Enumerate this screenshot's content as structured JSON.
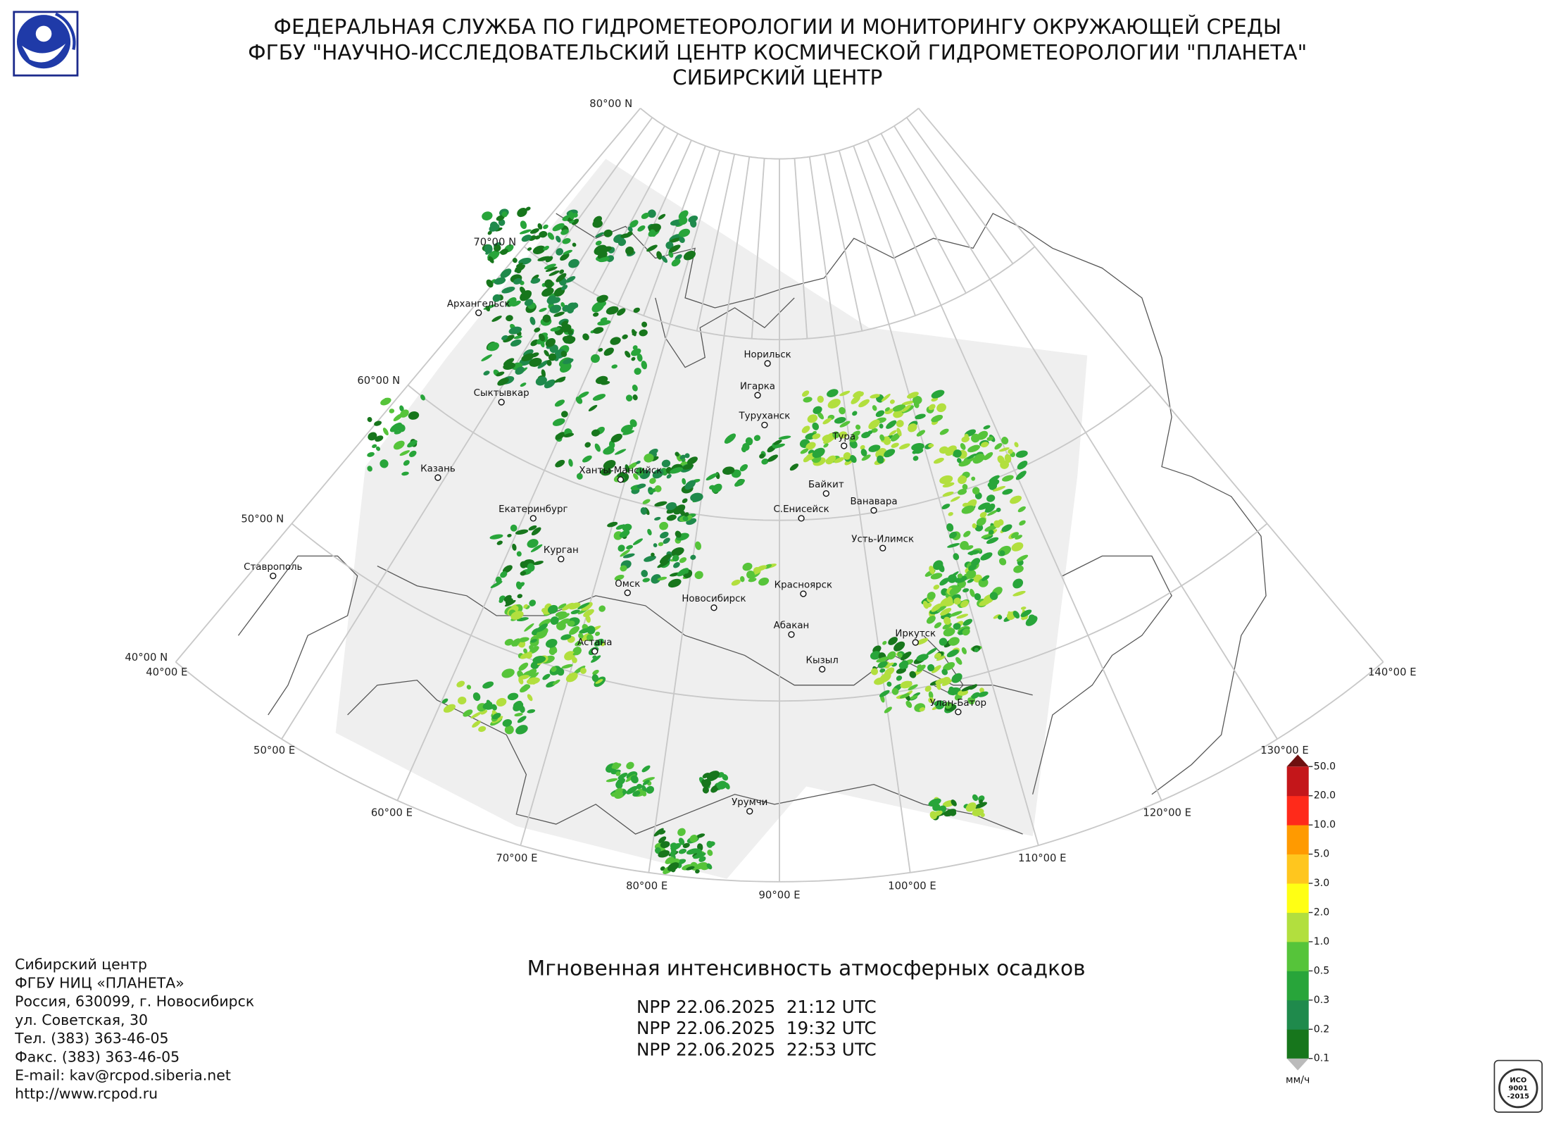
{
  "header": {
    "lines": [
      "ФЕДЕРАЛЬНАЯ СЛУЖБА ПО ГИДРОМЕТЕОРОЛОГИИ И МОНИТОРИНГУ ОКРУЖАЮЩЕЙ СРЕДЫ",
      "ФГБУ \"НАУЧНО-ИССЛЕДОВАТЕЛЬСКИЙ ЦЕНТР КОСМИЧЕСКОЙ ГИДРОМЕТЕОРОЛОГИИ \"ПЛАНЕТА\"",
      "СИБИРСКИЙ ЦЕНТР"
    ]
  },
  "map": {
    "lat_labels": [
      "80°00 N",
      "70°00 N",
      "60°00 N",
      "50°00 N",
      "40°00 N"
    ],
    "lon_labels": [
      "40°00 E",
      "50°00 E",
      "60°00 E",
      "70°00 E",
      "80°00 E",
      "90°00 E",
      "100°00 E",
      "110°00 E",
      "120°00 E",
      "130°00 E",
      "140°00 E"
    ],
    "cities": [
      "Норильск",
      "Игарка",
      "Туруханск",
      "Тура",
      "Байкит",
      "Ванавара",
      "С.Енисейск",
      "Усть-Илимск",
      "Красноярск",
      "Новосибирск",
      "Абакан",
      "Кызыл",
      "Иркутск",
      "Улан-Батор",
      "Урумчи",
      "Омск",
      "Астана",
      "Курган",
      "Екатеринбург",
      "Ханты-Мансийск",
      "Сыктывкар",
      "Архангельск",
      "Казань",
      "Ставрополь"
    ]
  },
  "caption": "Мгновенная интенсивность атмосферных осадков",
  "passes": [
    "NPP 22.06.2025  21:12 UTC",
    "NPP 22.06.2025  19:32 UTC",
    "NPP 22.06.2025  22:53 UTC"
  ],
  "contacts": [
    "Сибирский центр",
    "ФГБУ НИЦ «ПЛАНЕТА»",
    "Россия, 630099, г. Новосибирск",
    "ул. Советская, 30",
    "Тел. (383) 363-46-05",
    "Факс. (383) 363-46-05",
    "E-mail: kav@rcpod.siberia.net",
    "http://www.rcpod.ru"
  ],
  "legend": {
    "unit": "мм/ч",
    "labels": [
      "0.1",
      "0.2",
      "0.3",
      "0.5",
      "1.0",
      "2.0",
      "3.0",
      "5.0",
      "10.0",
      "20.0",
      "50.0"
    ],
    "colors": [
      "#17761c",
      "#1f8a4c",
      "#28a53a",
      "#56c43a",
      "#b2df3e",
      "#ffff14",
      "#ffc61e",
      "#ff9a00",
      "#ff2a1a",
      "#c4161a"
    ]
  },
  "certificate": [
    "ИСО",
    "9001",
    "-2015"
  ]
}
